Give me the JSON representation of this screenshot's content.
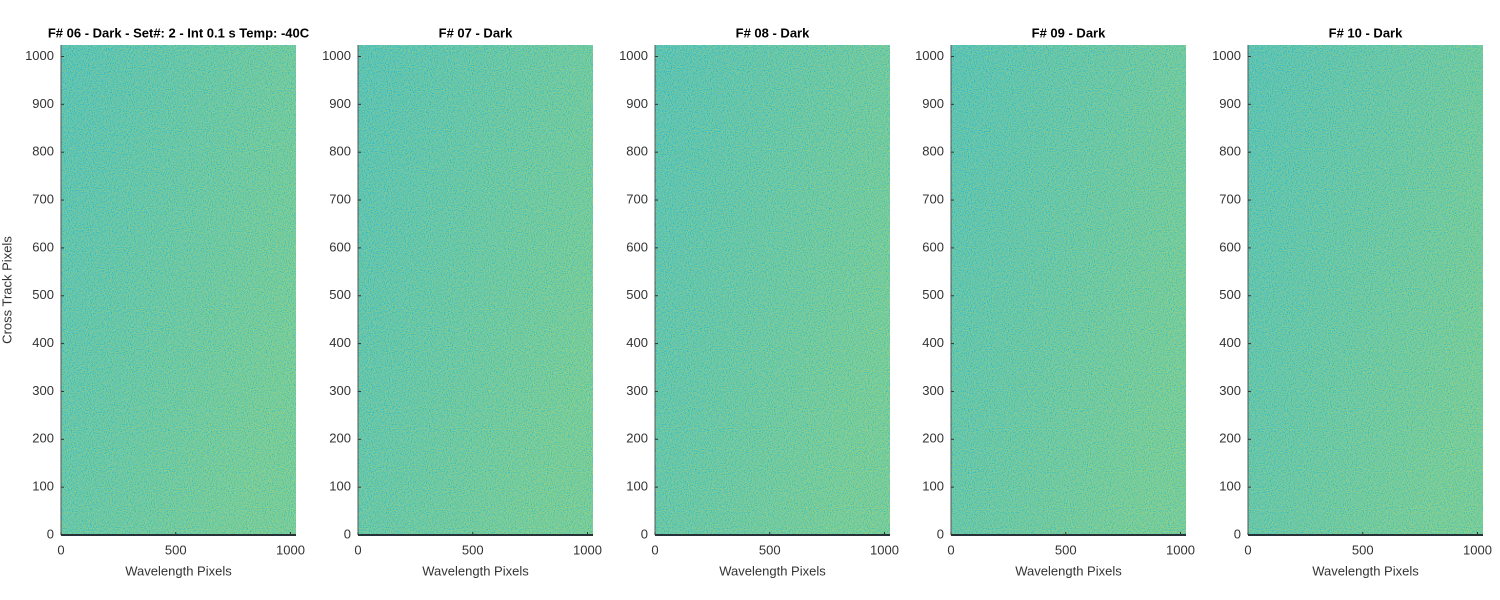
{
  "chart_data": [
    {
      "type": "image",
      "title": "F# 06 - Dark - Set#: 2 - Int 0.1 s Temp: -40C",
      "xlabel": "Wavelength Pixels",
      "ylabel": "Cross Track Pixels",
      "xlim": [
        0,
        1024
      ],
      "ylim": [
        0,
        1024
      ],
      "xticks": [
        0,
        500,
        1000
      ],
      "yticks": [
        0,
        100,
        200,
        300,
        400,
        500,
        600,
        700,
        800,
        900,
        1000
      ]
    },
    {
      "type": "image",
      "title": "F# 07 - Dark",
      "xlabel": "Wavelength Pixels",
      "xlim": [
        0,
        1024
      ],
      "ylim": [
        0,
        1024
      ],
      "xticks": [
        0,
        500,
        1000
      ],
      "yticks": [
        0,
        100,
        200,
        300,
        400,
        500,
        600,
        700,
        800,
        900,
        1000
      ]
    },
    {
      "type": "image",
      "title": "F# 08 - Dark",
      "xlabel": "Wavelength Pixels",
      "xlim": [
        0,
        1024
      ],
      "ylim": [
        0,
        1024
      ],
      "xticks": [
        0,
        500,
        1000
      ],
      "yticks": [
        0,
        100,
        200,
        300,
        400,
        500,
        600,
        700,
        800,
        900,
        1000
      ]
    },
    {
      "type": "image",
      "title": "F# 09 - Dark",
      "xlabel": "Wavelength Pixels",
      "xlim": [
        0,
        1024
      ],
      "ylim": [
        0,
        1024
      ],
      "xticks": [
        0,
        500,
        1000
      ],
      "yticks": [
        0,
        100,
        200,
        300,
        400,
        500,
        600,
        700,
        800,
        900,
        1000
      ]
    },
    {
      "type": "image",
      "title": "F# 10 - Dark",
      "xlabel": "Wavelength Pixels",
      "xlim": [
        0,
        1024
      ],
      "ylim": [
        0,
        1024
      ],
      "xticks": [
        0,
        500,
        1000
      ],
      "yticks": [
        0,
        100,
        200,
        300,
        400,
        500,
        600,
        700,
        800,
        900,
        1000
      ]
    }
  ]
}
